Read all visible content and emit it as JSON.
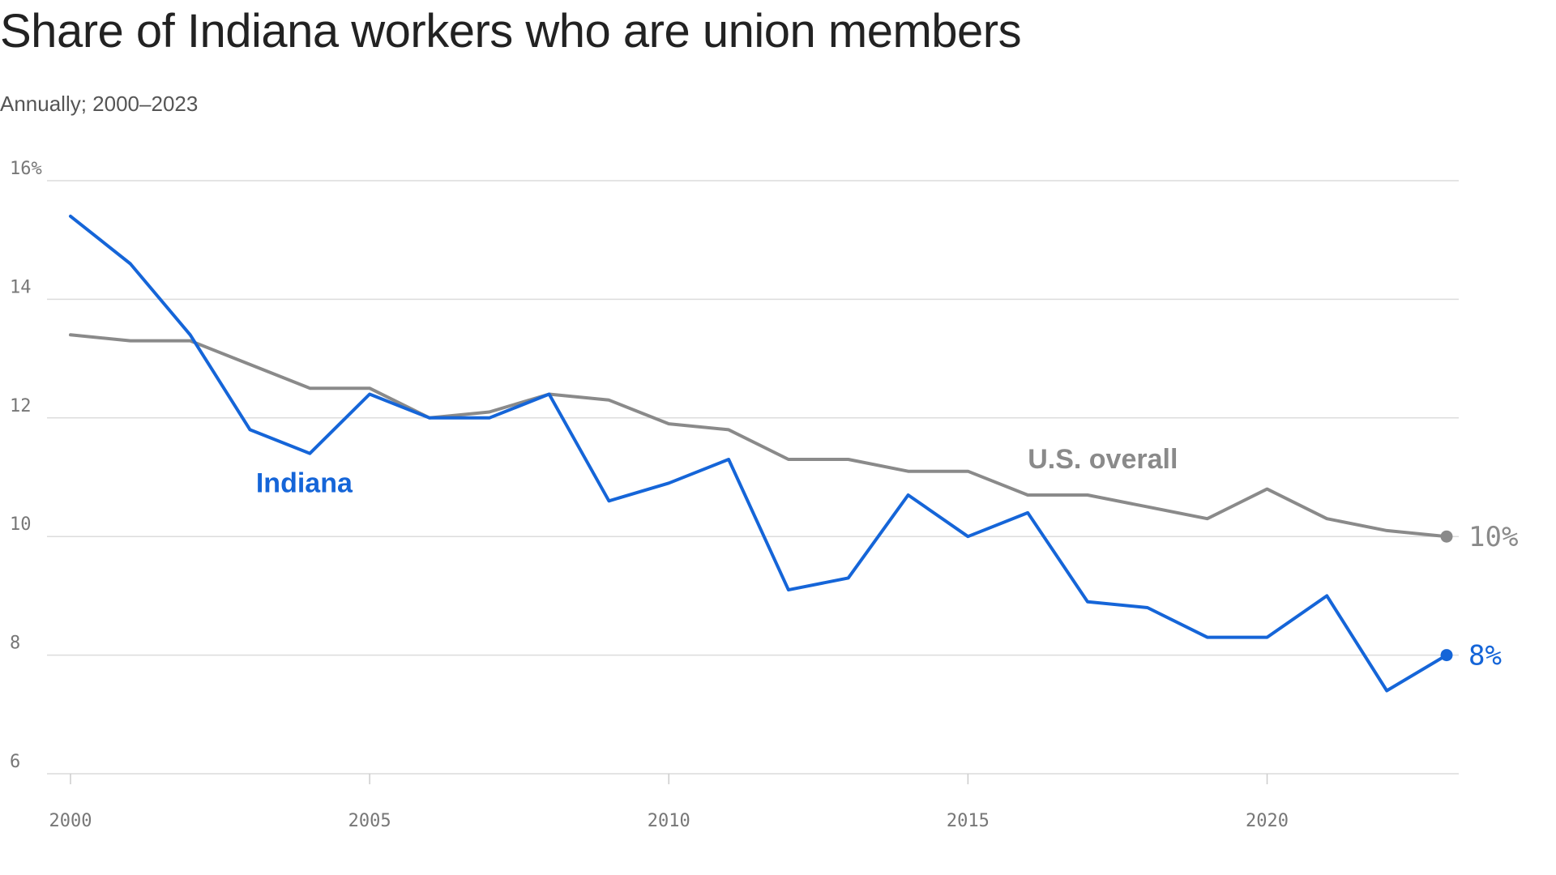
{
  "chart_data": {
    "type": "line",
    "title": "Share of Indiana workers who are union members",
    "subtitle": "Annually; 2000–2023",
    "xlabel": "",
    "ylabel": "",
    "x": [
      2000,
      2001,
      2002,
      2003,
      2004,
      2005,
      2006,
      2007,
      2008,
      2009,
      2010,
      2011,
      2012,
      2013,
      2014,
      2015,
      2016,
      2017,
      2018,
      2019,
      2020,
      2021,
      2022,
      2023
    ],
    "xlim": [
      2000,
      2023
    ],
    "ylim": [
      6,
      16
    ],
    "x_ticks": [
      {
        "value": 2000,
        "label": "2000"
      },
      {
        "value": 2005,
        "label": "2005"
      },
      {
        "value": 2010,
        "label": "2010"
      },
      {
        "value": 2015,
        "label": "2015"
      },
      {
        "value": 2020,
        "label": "2020"
      }
    ],
    "y_ticks": [
      {
        "value": 16,
        "label": "16%"
      },
      {
        "value": 14,
        "label": "14"
      },
      {
        "value": 12,
        "label": "12"
      },
      {
        "value": 10,
        "label": "10"
      },
      {
        "value": 8,
        "label": "8"
      },
      {
        "value": 6,
        "label": "6"
      }
    ],
    "grid": true,
    "series": [
      {
        "key": "us",
        "name": "U.S. overall",
        "color": "#8a8a8a",
        "values": [
          13.4,
          13.3,
          13.3,
          12.9,
          12.5,
          12.5,
          12.0,
          12.1,
          12.4,
          12.3,
          11.9,
          11.8,
          11.3,
          11.3,
          11.1,
          11.1,
          10.7,
          10.7,
          10.5,
          10.3,
          10.8,
          10.3,
          10.1,
          10.0
        ],
        "label_anchor_year": 2016,
        "label_anchor_value": 11.15,
        "end_label": "10%"
      },
      {
        "key": "indiana",
        "name": "Indiana",
        "color": "#1565d8",
        "values": [
          15.4,
          14.6,
          13.4,
          11.8,
          11.4,
          12.4,
          12.0,
          12.0,
          12.4,
          10.6,
          10.9,
          11.3,
          9.1,
          9.3,
          10.7,
          10.0,
          10.4,
          8.9,
          8.8,
          8.3,
          8.3,
          9.0,
          7.4,
          8.0
        ],
        "label_anchor_year": 2003.1,
        "label_anchor_value": 10.75,
        "end_label": "8%"
      }
    ]
  }
}
